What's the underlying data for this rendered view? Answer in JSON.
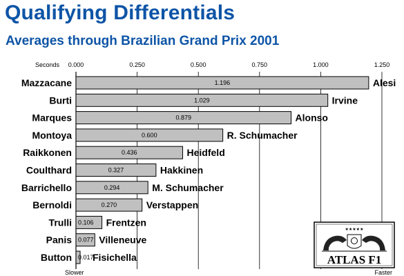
{
  "header": {
    "title": "Qualifying Differentials",
    "subtitle": "Averages through Brazilian Grand Prix 2001"
  },
  "colors": {
    "title": "#0d54a6",
    "bar_fill": "#c0c0c0",
    "bar_stroke": "#000000",
    "grid": "#000000"
  },
  "chart_data": {
    "type": "bar",
    "orientation": "horizontal",
    "title": "Qualifying Differentials",
    "subtitle": "Averages through Brazilian Grand Prix 2001",
    "x_axis_label": "Seconds",
    "x_ticks": [
      "0.000",
      "0.250",
      "0.500",
      "0.750",
      "1.000",
      "1.250"
    ],
    "xlim": [
      0,
      1.25
    ],
    "grid": true,
    "left_end_label": "Slower",
    "right_end_label": "Faster",
    "rows": [
      {
        "slower": "Mazzacane",
        "faster": "Alesi",
        "value": 1.196,
        "label": "1.196"
      },
      {
        "slower": "Burti",
        "faster": "Irvine",
        "value": 1.029,
        "label": "1.029"
      },
      {
        "slower": "Marques",
        "faster": "Alonso",
        "value": 0.879,
        "label": "0.879"
      },
      {
        "slower": "Montoya",
        "faster": "R. Schumacher",
        "value": 0.6,
        "label": "0.600"
      },
      {
        "slower": "Raikkonen",
        "faster": "Heidfeld",
        "value": 0.436,
        "label": "0.436"
      },
      {
        "slower": "Coulthard",
        "faster": "Hakkinen",
        "value": 0.327,
        "label": "0.327"
      },
      {
        "slower": "Barrichello",
        "faster": "M. Schumacher",
        "value": 0.294,
        "label": "0.294"
      },
      {
        "slower": "Bernoldi",
        "faster": "Verstappen",
        "value": 0.27,
        "label": "0.270"
      },
      {
        "slower": "Trulli",
        "faster": "Frentzen",
        "value": 0.106,
        "label": "0.106"
      },
      {
        "slower": "Panis",
        "faster": "Villeneuve",
        "value": 0.077,
        "label": "0.077"
      },
      {
        "slower": "Button",
        "faster": "Fisichella",
        "value": 0.017,
        "label": "0.017"
      }
    ]
  },
  "logo": {
    "text": "ATLAS F1",
    "icon": "atlas-f1-crest-icon"
  }
}
